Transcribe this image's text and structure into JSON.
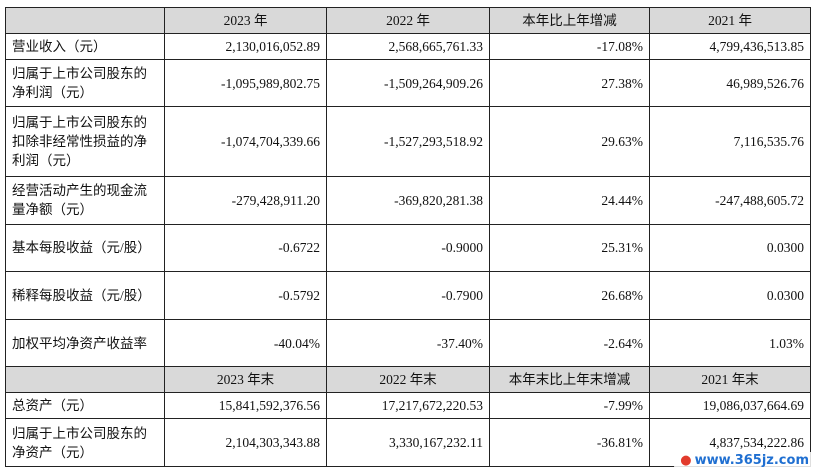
{
  "header1": [
    "",
    "2023 年",
    "2022 年",
    "本年比上年增减",
    "2021 年"
  ],
  "rows1": [
    {
      "label": "营业收入（元）",
      "values": [
        "2,130,016,052.89",
        "2,568,665,761.33",
        "-17.08%",
        "4,799,436,513.85"
      ]
    },
    {
      "label": "归属于上市公司股东的净利润（元）",
      "values": [
        "-1,095,989,802.75",
        "-1,509,264,909.26",
        "27.38%",
        "46,989,526.76"
      ]
    },
    {
      "label": "归属于上市公司股东的扣除非经常性损益的净利润（元）",
      "values": [
        "-1,074,704,339.66",
        "-1,527,293,518.92",
        "29.63%",
        "7,116,535.76"
      ]
    },
    {
      "label": "经营活动产生的现金流量净额（元）",
      "values": [
        "-279,428,911.20",
        "-369,820,281.38",
        "24.44%",
        "-247,488,605.72"
      ]
    },
    {
      "label": "基本每股收益（元/股）",
      "values": [
        "-0.6722",
        "-0.9000",
        "25.31%",
        "0.0300"
      ]
    },
    {
      "label": "稀释每股收益（元/股）",
      "values": [
        "-0.5792",
        "-0.7900",
        "26.68%",
        "0.0300"
      ]
    },
    {
      "label": "加权平均净资产收益率",
      "values": [
        "-40.04%",
        "-37.40%",
        "-2.64%",
        "1.03%"
      ]
    }
  ],
  "header2": [
    "",
    "2023 年末",
    "2022 年末",
    "本年末比上年末增减",
    "2021 年末"
  ],
  "rows2": [
    {
      "label": "总资产（元）",
      "values": [
        "15,841,592,376.56",
        "17,217,672,220.53",
        "-7.99%",
        "19,086,037,664.69"
      ]
    },
    {
      "label": "归属于上市公司股东的净资产（元）",
      "values": [
        "2,104,303,343.88",
        "3,330,167,232.11",
        "-36.81%",
        "4,837,534,222.86"
      ]
    }
  ],
  "watermark": {
    "text": "www.365jz.com",
    "icon": "globe-icon"
  }
}
